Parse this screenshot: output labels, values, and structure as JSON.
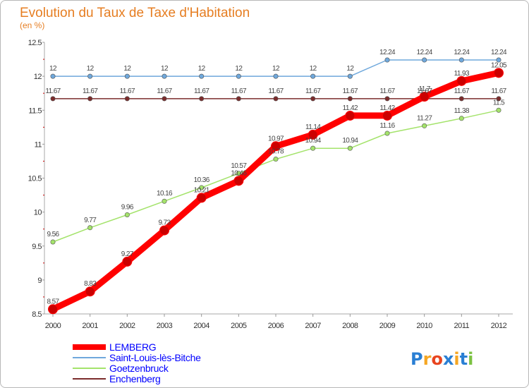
{
  "chart_data": {
    "type": "line",
    "title": "Evolution du Taux de Taxe d'Habitation",
    "subtitle": "(en %)",
    "x": [
      "2000",
      "2001",
      "2002",
      "2003",
      "2004",
      "2005",
      "2006",
      "2007",
      "2008",
      "2009",
      "2010",
      "2011",
      "2012"
    ],
    "ylim": [
      8.5,
      12.5
    ],
    "yticks": [
      "8.5",
      "9",
      "9.5",
      "10",
      "10.5",
      "11",
      "11.5",
      "12",
      "12.5"
    ],
    "grid": false,
    "legend_position": "bottom-left",
    "series": [
      {
        "name": "LEMBERG",
        "color": "#ff0000",
        "legend_color": "#0000ff",
        "values": [
          8.57,
          8.83,
          9.27,
          9.73,
          10.21,
          10.46,
          10.97,
          11.14,
          11.42,
          11.42,
          11.7,
          11.93,
          12.05
        ],
        "labels": [
          "8.57",
          "8.83",
          "9.27",
          "9.73",
          "10.21",
          "10.46",
          "10.97",
          "11.14",
          "11.42",
          "11.42",
          "11.7",
          "11.93",
          "12.05"
        ]
      },
      {
        "name": "Saint-Louis-lès-Bitche",
        "color": "#6fa8dc",
        "legend_color": "#0000ff",
        "values": [
          12,
          12,
          12,
          12,
          12,
          12,
          12,
          12,
          12,
          12.24,
          12.24,
          12.24,
          12.24
        ],
        "labels": [
          "12",
          "12",
          "12",
          "12",
          "12",
          "12",
          "12",
          "12",
          "12",
          "12.24",
          "12.24",
          "12.24",
          "12.24"
        ]
      },
      {
        "name": "Goetzenbruck",
        "color": "#a4e36b",
        "legend_color": "#0000ff",
        "values": [
          9.56,
          9.77,
          9.96,
          10.16,
          10.36,
          10.57,
          10.78,
          10.94,
          10.94,
          11.16,
          11.27,
          11.38,
          11.5
        ],
        "labels": [
          "9.56",
          "9.77",
          "9.96",
          "10.16",
          "10.36",
          "10.57",
          "10.78",
          "10.94",
          "10.94",
          "11.16",
          "11.27",
          "11.38",
          "11.5"
        ]
      },
      {
        "name": "Enchenberg",
        "color": "#7b2c2c",
        "legend_color": "#0000ff",
        "values": [
          11.67,
          11.67,
          11.67,
          11.67,
          11.67,
          11.67,
          11.67,
          11.67,
          11.67,
          11.67,
          11.67,
          11.67,
          11.67
        ],
        "labels": [
          "11.67",
          "11.67",
          "11.67",
          "11.67",
          "11.67",
          "11.67",
          "11.67",
          "11.67",
          "11.67",
          "11.67",
          "11.67",
          "11.67",
          "11.67"
        ]
      }
    ],
    "logo": {
      "text": "Proxiti",
      "colors": [
        "#2a7fd4",
        "#f5a623",
        "#e8441f",
        "#2a7fd4",
        "#f5a623",
        "#2a7fd4",
        "#7cc242"
      ]
    }
  }
}
